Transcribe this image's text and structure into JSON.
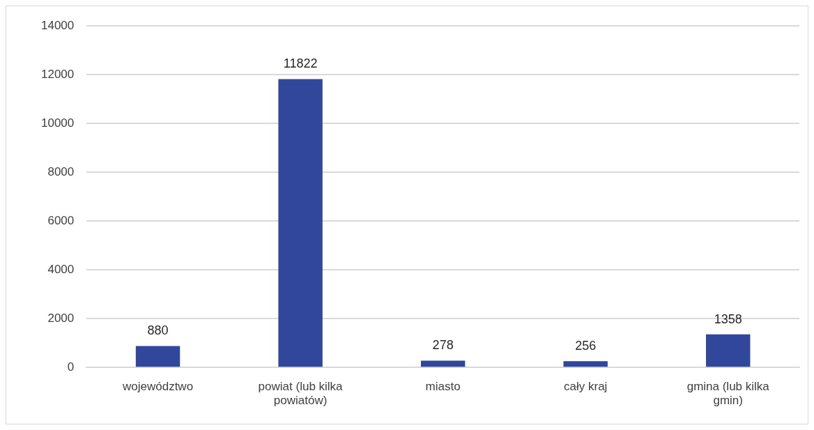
{
  "chart_data": {
    "type": "bar",
    "categories": [
      "województwo",
      "powiat (lub kilka powiatów)",
      "miasto",
      "cały kraj",
      "gmina (lub kilka gmin)"
    ],
    "values": [
      880,
      11822,
      278,
      256,
      1358
    ],
    "color": "#30479c",
    "ylim": [
      0,
      14000
    ],
    "yticks": [
      0,
      2000,
      4000,
      6000,
      8000,
      10000,
      12000,
      14000
    ],
    "grid": "y",
    "data_labels": true,
    "legend": false
  }
}
